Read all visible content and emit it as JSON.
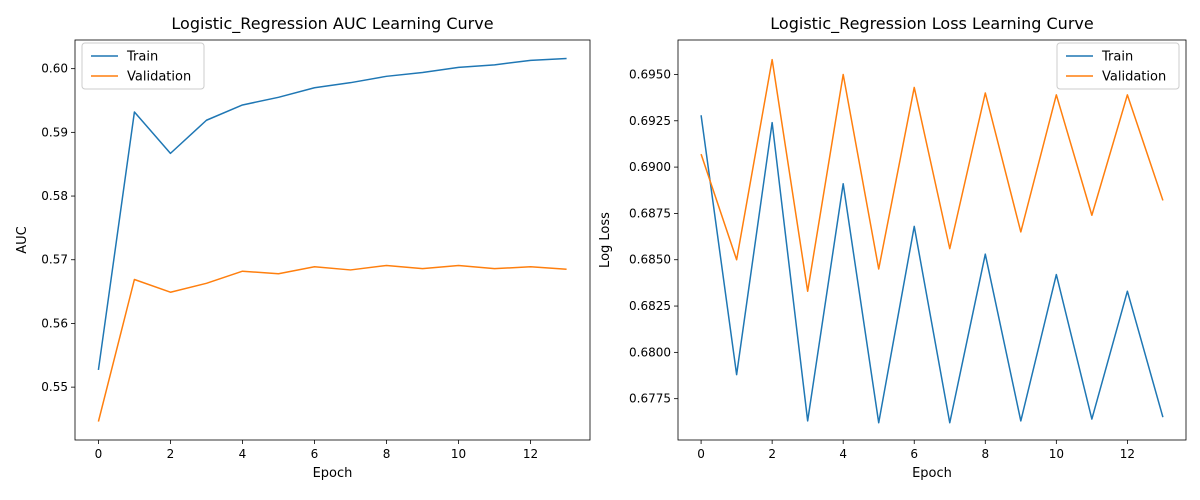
{
  "chart_data": [
    {
      "type": "line",
      "title": "Logistic_Regression AUC Learning Curve",
      "xlabel": "Epoch",
      "ylabel": "AUC",
      "x": [
        0,
        1,
        2,
        3,
        4,
        5,
        6,
        7,
        8,
        9,
        10,
        11,
        12,
        13
      ],
      "xlim": [
        -0.65,
        13.65
      ],
      "ylim": [
        0.5417,
        0.6045
      ],
      "xticks": [
        0,
        2,
        4,
        6,
        8,
        10,
        12
      ],
      "xtick_labels": [
        "0",
        "2",
        "4",
        "6",
        "8",
        "10",
        "12"
      ],
      "yticks": [
        0.55,
        0.56,
        0.57,
        0.58,
        0.59,
        0.6
      ],
      "ytick_labels": [
        "0.55",
        "0.56",
        "0.57",
        "0.58",
        "0.59",
        "0.60"
      ],
      "grid": false,
      "legend_position": "upper-left",
      "series": [
        {
          "name": "Train",
          "color": "#1f77b4",
          "values": [
            0.5527,
            0.5932,
            0.5867,
            0.5919,
            0.5943,
            0.5955,
            0.597,
            0.5978,
            0.5988,
            0.5994,
            0.6002,
            0.6006,
            0.6013,
            0.6016
          ]
        },
        {
          "name": "Validation",
          "color": "#ff7f0e",
          "values": [
            0.5446,
            0.5669,
            0.5649,
            0.5663,
            0.5682,
            0.5678,
            0.5689,
            0.5684,
            0.5691,
            0.5686,
            0.5691,
            0.5686,
            0.5689,
            0.5685
          ]
        }
      ]
    },
    {
      "type": "line",
      "title": "Logistic_Regression Loss Learning Curve",
      "xlabel": "Epoch",
      "ylabel": "Log Loss",
      "x": [
        0,
        1,
        2,
        3,
        4,
        5,
        6,
        7,
        8,
        9,
        10,
        11,
        12,
        13
      ],
      "xlim": [
        -0.65,
        13.65
      ],
      "ylim": [
        0.67527,
        0.69686
      ],
      "xticks": [
        0,
        2,
        4,
        6,
        8,
        10,
        12
      ],
      "xtick_labels": [
        "0",
        "2",
        "4",
        "6",
        "8",
        "10",
        "12"
      ],
      "yticks": [
        0.6775,
        0.68,
        0.6825,
        0.685,
        0.6875,
        0.69,
        0.6925,
        0.695
      ],
      "ytick_labels": [
        "0.6775",
        "0.6800",
        "0.6825",
        "0.6850",
        "0.6875",
        "0.6900",
        "0.6925",
        "0.6950"
      ],
      "grid": false,
      "legend_position": "upper-right",
      "series": [
        {
          "name": "Train",
          "color": "#1f77b4",
          "values": [
            0.6928,
            0.6788,
            0.6924,
            0.6763,
            0.6891,
            0.6762,
            0.6868,
            0.6762,
            0.6853,
            0.6763,
            0.6842,
            0.6764,
            0.6833,
            0.6765
          ]
        },
        {
          "name": "Validation",
          "color": "#ff7f0e",
          "values": [
            0.6907,
            0.685,
            0.6958,
            0.6833,
            0.695,
            0.6845,
            0.6943,
            0.6856,
            0.694,
            0.6865,
            0.6939,
            0.6874,
            0.6939,
            0.6882
          ]
        }
      ]
    }
  ]
}
